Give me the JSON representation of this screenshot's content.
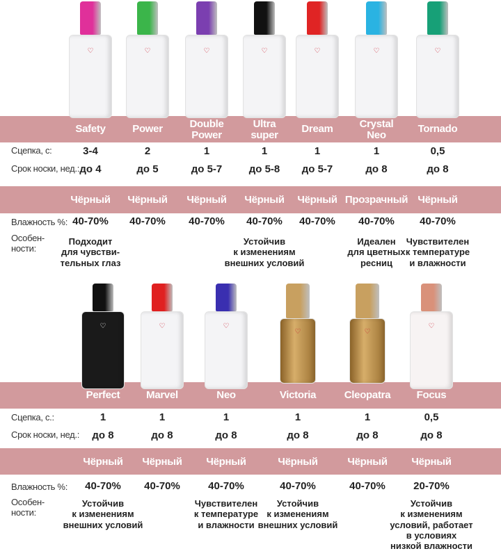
{
  "colors": {
    "band": "#d29a9d",
    "band_text": "#ffffff"
  },
  "labels": {
    "setting": "Сцепка, с:",
    "setting2": "Сцепка, с.:",
    "wear": "Срок носки, нед.:",
    "humidity": "Влажность %:",
    "features": "Особен-\nности:"
  },
  "top": {
    "products": [
      {
        "name": "Safety",
        "cap_color": "#e0309a",
        "bottle_color": "#f4f4f6",
        "setting": "3-4",
        "wear": "до 4",
        "color": "Чёрный",
        "humidity": "40-70%",
        "features": "Подходит\nдля чувстви-\nтельных глаз"
      },
      {
        "name": "Power",
        "cap_color": "#3bb54a",
        "bottle_color": "#f4f4f6",
        "setting": "2",
        "wear": "до 5",
        "color": "Чёрный",
        "humidity": "40-70%",
        "features": ""
      },
      {
        "name": "Double\nPower",
        "cap_color": "#7b3fb0",
        "bottle_color": "#f4f4f6",
        "setting": "1",
        "wear": "до 5-7",
        "color": "Чёрный",
        "humidity": "40-70%",
        "features": ""
      },
      {
        "name": "Ultra\nsuper",
        "cap_color": "#111111",
        "bottle_color": "#f4f4f6",
        "setting": "1",
        "wear": "до 5-8",
        "color": "Чёрный",
        "humidity": "40-70%",
        "features": "Устойчив\nк изменениям\nвнешних условий"
      },
      {
        "name": "Dream",
        "cap_color": "#e02424",
        "bottle_color": "#f4f4f6",
        "setting": "1",
        "wear": "до 5-7",
        "color": "Чёрный",
        "humidity": "40-70%",
        "features": ""
      },
      {
        "name": "Crystal\nNeo",
        "cap_color": "#2ab3e2",
        "bottle_color": "#f4f4f6",
        "setting": "1",
        "wear": "до 8",
        "color": "Прозрачный",
        "humidity": "40-70%",
        "features": "Идеален\nдля цветных\nресниц"
      },
      {
        "name": "Tornado",
        "cap_color": "#17a077",
        "bottle_color": "#f4f4f6",
        "setting": "0,5",
        "wear": "до 8",
        "color": "Чёрный",
        "humidity": "40-70%",
        "features": "Чувствителен\nк температуре\nи влажности"
      }
    ]
  },
  "bottom": {
    "products": [
      {
        "name": "Perfect",
        "cap_color": "#111111",
        "bottle_color": "#1a1a1a",
        "setting": "1",
        "wear": "до 8",
        "color": "Чёрный",
        "humidity": "40-70%",
        "features": "Устойчив\nк изменениям\nвнешних условий"
      },
      {
        "name": "Marvel",
        "cap_color": "#e02020",
        "bottle_color": "#f4f4f6",
        "setting": "1",
        "wear": "до 8",
        "color": "Чёрный",
        "humidity": "40-70%",
        "features": ""
      },
      {
        "name": "Neo",
        "cap_color": "#3a2fb0",
        "bottle_color": "#f4f4f6",
        "setting": "1",
        "wear": "до 8",
        "color": "Чёрный",
        "humidity": "40-70%",
        "features": "Чувствителен\nк температуре\nи влажности"
      },
      {
        "name": "Victoria",
        "cap_color": "#c8a060",
        "bottle_color": "#b88a45",
        "setting": "1",
        "wear": "до 8",
        "color": "Чёрный",
        "humidity": "40-70%",
        "features": "Устойчив\nк изменениям\nвнешних условий"
      },
      {
        "name": "Cleopatra",
        "cap_color": "#c8a060",
        "bottle_color": "#b88a45",
        "setting": "1",
        "wear": "до 8",
        "color": "Чёрный",
        "humidity": "40-70%",
        "features": ""
      },
      {
        "name": "Focus",
        "cap_color": "#d9917a",
        "bottle_color": "#f7f3f3",
        "setting": "0,5",
        "wear": "до 8",
        "color": "Чёрный",
        "humidity": "20-70%",
        "features": "Устойчив\nк изменениям\nусловий, работает\nв условиях\nнизкой влажности"
      }
    ]
  }
}
